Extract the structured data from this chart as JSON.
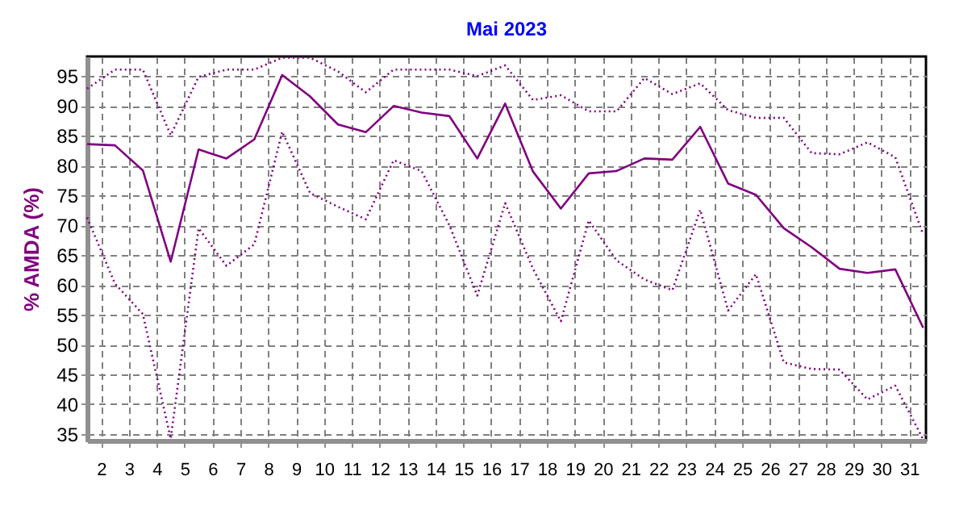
{
  "chart_data": {
    "type": "line",
    "title": "Mai 2023",
    "ylabel": "% AMDA (%)",
    "x": [
      1.5,
      2.5,
      3.5,
      4.5,
      5.5,
      6.5,
      7.5,
      8.5,
      9.5,
      10.5,
      11.5,
      12.5,
      13.5,
      14.5,
      15.5,
      16.5,
      17.5,
      18.5,
      19.5,
      20.5,
      21.5,
      22.5,
      23.5,
      24.5,
      25.5,
      26.5,
      27.5,
      28.5,
      29.5,
      30.5,
      31.5
    ],
    "series": [
      {
        "color": "#800080",
        "line_style": "dotted",
        "values": [
          92.9,
          96.1,
          96.1,
          85.1,
          94.9,
          96.1,
          96.1,
          98.1,
          98.1,
          95.8,
          92.3,
          96.1,
          96.1,
          96.1,
          95.0,
          96.8,
          91.0,
          91.8,
          89.1,
          89.1,
          94.7,
          92.0,
          93.8,
          89.3,
          88.0,
          88.0,
          82.1,
          81.9,
          83.9,
          81.4,
          68.4
        ]
      },
      {
        "color": "#800080",
        "line_style": "solid",
        "values": [
          83.6,
          83.4,
          79.2,
          63.9,
          82.7,
          81.2,
          84.4,
          95.2,
          91.6,
          86.9,
          85.6,
          90.0,
          88.9,
          88.3,
          81.2,
          90.4,
          79.0,
          72.8,
          78.7,
          79.1,
          81.2,
          81.0,
          86.5,
          77.0,
          75.1,
          69.5,
          66.3,
          62.7,
          62.0,
          62.6,
          52.8
        ]
      },
      {
        "color": "#800080",
        "line_style": "dotted",
        "values": [
          71.3,
          60.2,
          55.1,
          34.2,
          69.5,
          63.2,
          66.8,
          85.7,
          75.4,
          73.1,
          71.0,
          80.9,
          79.1,
          70.0,
          58.2,
          73.7,
          62.7,
          53.9,
          70.8,
          64.1,
          60.9,
          59.1,
          72.6,
          55.7,
          61.8,
          47.0,
          45.9,
          45.8,
          40.8,
          43.1,
          34.1
        ]
      }
    ],
    "xlim": [
      1.5,
      31.6
    ],
    "xticks": [
      2,
      3,
      4,
      5,
      6,
      7,
      8,
      9,
      10,
      11,
      12,
      13,
      14,
      15,
      16,
      17,
      18,
      19,
      20,
      21,
      22,
      23,
      24,
      25,
      26,
      27,
      28,
      29,
      30,
      31
    ],
    "ylim": [
      33.9,
      98.3
    ],
    "yticks": [
      35,
      40,
      45,
      50,
      55,
      60,
      65,
      70,
      75,
      80,
      85,
      90,
      95
    ],
    "grid": true,
    "marker": "none"
  }
}
